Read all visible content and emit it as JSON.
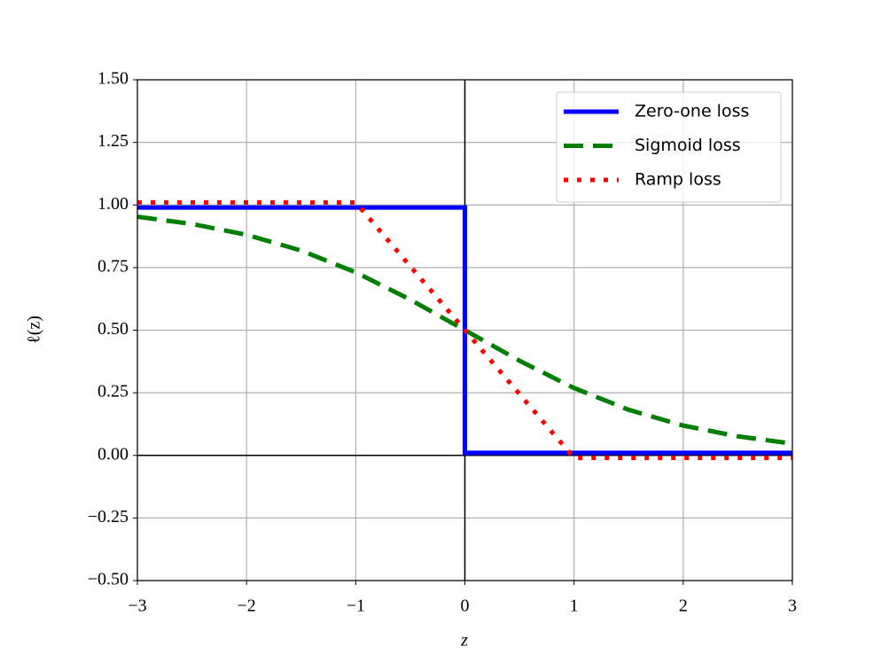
{
  "chart_data": {
    "type": "line",
    "xlabel": "z",
    "ylabel": "ℓ(z)",
    "xlim": [
      -3,
      3
    ],
    "xticks": [
      {
        "value": -3,
        "label": "−3"
      },
      {
        "value": -2,
        "label": "−2"
      },
      {
        "value": -1,
        "label": "−1"
      },
      0,
      1,
      2,
      3
    ],
    "ylim": [
      -0.5,
      1.5
    ],
    "yticks": [
      {
        "value": -0.5,
        "label": "−0.50"
      },
      {
        "value": -0.25,
        "label": "−0.25"
      },
      {
        "value": 0,
        "label": "0.00"
      },
      {
        "value": 0.25,
        "label": "0.25"
      },
      {
        "value": 0.5,
        "label": "0.50"
      },
      {
        "value": 0.75,
        "label": "0.75"
      },
      {
        "value": 1,
        "label": "1.00"
      },
      {
        "value": 1.25,
        "label": "1.25"
      },
      {
        "value": 1.5,
        "label": "1.50"
      }
    ],
    "grid": true,
    "legend": "upper right",
    "series": [
      {
        "name": "Zero-one loss",
        "color": "#0000ff",
        "style": "solid",
        "x": [
          -3,
          0,
          0,
          3
        ],
        "values": [
          0.99,
          0.99,
          0.01,
          0.01
        ]
      },
      {
        "name": "Sigmoid loss",
        "color": "#008000",
        "style": "dashed",
        "x": [
          -3,
          -2.5,
          -2,
          -1.5,
          -1,
          -0.5,
          0,
          0.5,
          1,
          1.5,
          2,
          2.5,
          3
        ],
        "values": [
          0.953,
          0.924,
          0.881,
          0.818,
          0.731,
          0.622,
          0.5,
          0.378,
          0.269,
          0.182,
          0.119,
          0.076,
          0.047
        ]
      },
      {
        "name": "Ramp loss",
        "color": "#ff0000",
        "style": "dotted",
        "x": [
          -3,
          -1,
          1,
          3
        ],
        "values": [
          1.01,
          1.01,
          -0.01,
          -0.01
        ]
      }
    ]
  }
}
